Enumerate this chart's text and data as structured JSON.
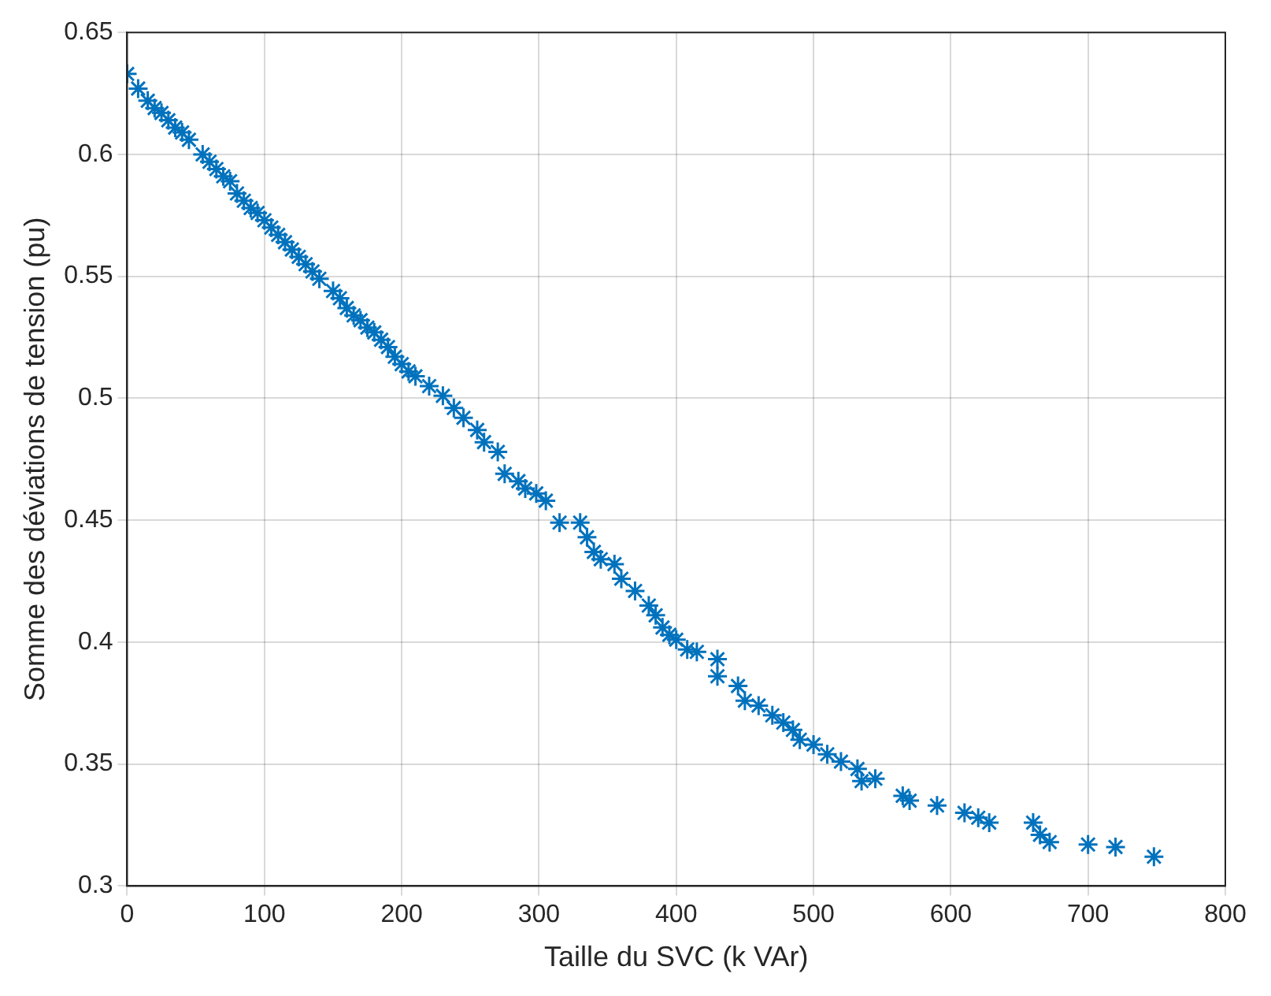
{
  "chart_data": {
    "type": "scatter",
    "xlabel": "Taille du SVC (k VAr)",
    "ylabel": "Somme des déviations de tension (pu)",
    "xlim": [
      0,
      800
    ],
    "xticks": [
      0,
      100,
      200,
      300,
      400,
      500,
      600,
      700,
      800
    ],
    "ylim": [
      0.3,
      0.65
    ],
    "yticks": [
      0.3,
      0.35,
      0.4,
      0.45,
      0.5,
      0.55,
      0.6,
      0.65
    ],
    "grid": true,
    "legend": false,
    "marker": "cross",
    "series": [
      {
        "color": "#0072bd",
        "x": [
          0,
          8,
          15,
          20,
          25,
          30,
          35,
          40,
          45,
          55,
          60,
          65,
          70,
          75,
          80,
          85,
          90,
          95,
          100,
          105,
          110,
          115,
          120,
          125,
          130,
          135,
          140,
          150,
          155,
          160,
          165,
          170,
          175,
          180,
          185,
          190,
          195,
          200,
          205,
          210,
          220,
          230,
          238,
          245,
          255,
          260,
          270,
          275,
          285,
          290,
          298,
          305,
          315,
          330,
          335,
          340,
          345,
          355,
          360,
          370,
          380,
          385,
          390,
          395,
          400,
          408,
          415,
          430,
          430,
          445,
          450,
          460,
          470,
          478,
          485,
          490,
          500,
          510,
          520,
          532,
          535,
          545,
          565,
          570,
          590,
          610,
          620,
          628,
          660,
          665,
          672,
          700,
          720,
          748
        ],
        "values": [
          0.633,
          0.627,
          0.622,
          0.619,
          0.617,
          0.614,
          0.611,
          0.609,
          0.606,
          0.6,
          0.597,
          0.594,
          0.591,
          0.589,
          0.584,
          0.581,
          0.578,
          0.576,
          0.573,
          0.57,
          0.567,
          0.564,
          0.561,
          0.558,
          0.555,
          0.552,
          0.549,
          0.544,
          0.541,
          0.537,
          0.534,
          0.532,
          0.529,
          0.527,
          0.524,
          0.521,
          0.517,
          0.514,
          0.511,
          0.509,
          0.505,
          0.501,
          0.496,
          0.492,
          0.487,
          0.482,
          0.478,
          0.469,
          0.466,
          0.463,
          0.461,
          0.458,
          0.449,
          0.449,
          0.443,
          0.437,
          0.434,
          0.432,
          0.426,
          0.421,
          0.415,
          0.411,
          0.406,
          0.403,
          0.401,
          0.397,
          0.396,
          0.393,
          0.386,
          0.382,
          0.376,
          0.374,
          0.37,
          0.367,
          0.364,
          0.36,
          0.358,
          0.354,
          0.351,
          0.348,
          0.343,
          0.344,
          0.337,
          0.335,
          0.333,
          0.33,
          0.328,
          0.326,
          0.326,
          0.321,
          0.318,
          0.317,
          0.316,
          0.312
        ]
      }
    ]
  }
}
